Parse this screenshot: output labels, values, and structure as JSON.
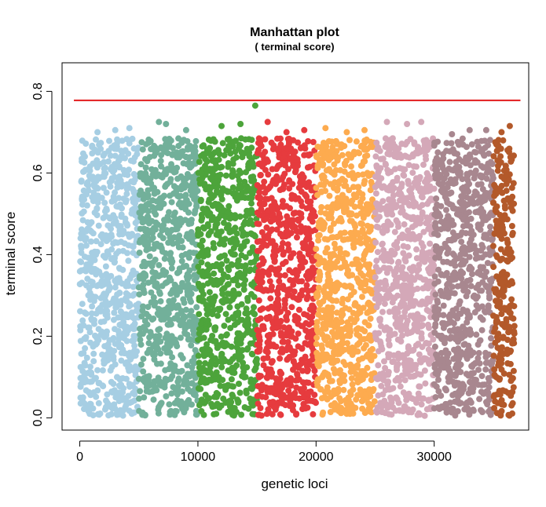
{
  "chart_data": {
    "type": "scatter",
    "title": "Manhattan plot",
    "subtitle": "( terminal score)",
    "xlabel": "genetic loci",
    "ylabel": "terminal score",
    "xlim": [
      -1500,
      38000
    ],
    "ylim": [
      -0.03,
      0.87
    ],
    "xticks": [
      0,
      10000,
      20000,
      30000
    ],
    "xtick_labels": [
      "0",
      "10000",
      "20000",
      "30000"
    ],
    "yticks": [
      0.0,
      0.2,
      0.4,
      0.6,
      0.8
    ],
    "ytick_labels": [
      "0.0",
      "0.2",
      "0.4",
      "0.6",
      "0.8"
    ],
    "threshold": {
      "y": 0.778,
      "color": "#e31a1c"
    },
    "grid": false,
    "legend": "none",
    "point_count_per_series": 700,
    "series": [
      {
        "x_range": [
          0,
          5000
        ],
        "color": "#a6cee3",
        "outliers": [
          [
            1500,
            0.7
          ],
          [
            3000,
            0.705
          ],
          [
            4200,
            0.71
          ]
        ]
      },
      {
        "x_range": [
          5000,
          10000
        ],
        "color": "#72b09a",
        "outliers": [
          [
            6700,
            0.725
          ],
          [
            7300,
            0.72
          ],
          [
            9000,
            0.705
          ]
        ]
      },
      {
        "x_range": [
          10000,
          15000
        ],
        "color": "#4da43b",
        "outliers": [
          [
            12000,
            0.715
          ],
          [
            13600,
            0.72
          ],
          [
            14850,
            0.765
          ]
        ]
      },
      {
        "x_range": [
          15000,
          20000
        ],
        "color": "#e63b3e",
        "outliers": [
          [
            15900,
            0.725
          ],
          [
            17500,
            0.7
          ],
          [
            19000,
            0.705
          ]
        ]
      },
      {
        "x_range": [
          20000,
          25000
        ],
        "color": "#fdab4f",
        "outliers": [
          [
            20800,
            0.71
          ],
          [
            22600,
            0.7
          ],
          [
            24100,
            0.705
          ]
        ]
      },
      {
        "x_range": [
          25000,
          30000
        ],
        "color": "#d4a8b8",
        "outliers": [
          [
            26000,
            0.725
          ],
          [
            27700,
            0.72
          ],
          [
            28900,
            0.725
          ]
        ]
      },
      {
        "x_range": [
          30000,
          35000
        ],
        "color": "#a8878f",
        "outliers": [
          [
            31500,
            0.695
          ],
          [
            33000,
            0.705
          ],
          [
            34400,
            0.705
          ]
        ]
      },
      {
        "x_range": [
          35000,
          36800
        ],
        "color": "#b3592a",
        "outliers": [
          [
            35700,
            0.7
          ],
          [
            36400,
            0.715
          ]
        ]
      }
    ]
  }
}
